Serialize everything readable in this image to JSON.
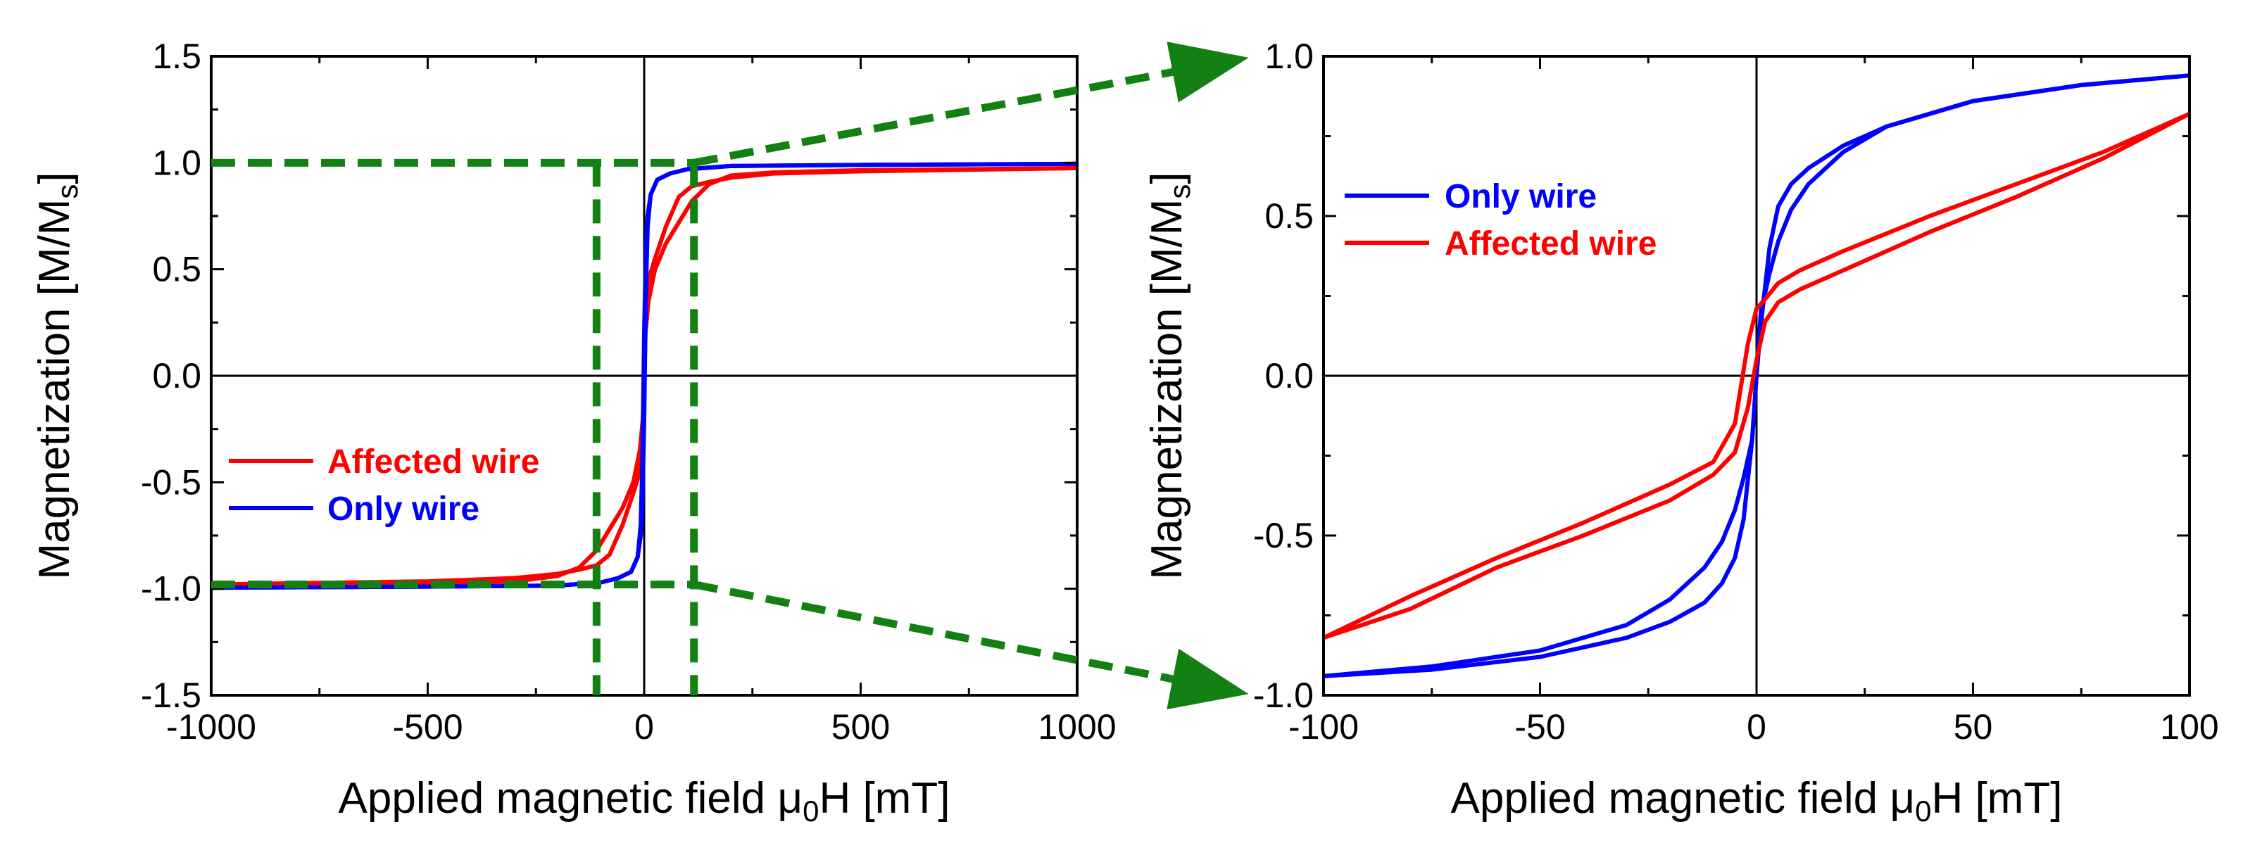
{
  "chart_data": [
    {
      "type": "line",
      "xlabel": "Applied magnetic field μ0H [mT]",
      "ylabel": "Magnetization [M/Ms]",
      "xlim": [
        -1000,
        1000
      ],
      "ylim": [
        -1.5,
        1.5
      ],
      "xticks": [
        -1000,
        -500,
        0,
        500,
        1000
      ],
      "xtick_labels": [
        "-1000",
        "-500",
        "0",
        "500",
        "1000"
      ],
      "yticks": [
        -1.5,
        -1.0,
        -0.5,
        0.0,
        0.5,
        1.0,
        1.5
      ],
      "ytick_labels": [
        "-1.5",
        "-1.0",
        "-0.5",
        "0.0",
        "0.5",
        "1.0",
        "1.5"
      ],
      "zero_lines": true,
      "legend_position": "center-left",
      "legend": [
        "Affected wire",
        "Only wire"
      ],
      "zoom_box": {
        "x": [
          -110,
          115
        ],
        "y": [
          -0.98,
          1.0
        ]
      },
      "series": [
        {
          "name": "Affected wire",
          "color": "#ff0000",
          "branches": [
            {
              "x": [
                -1000,
                -500,
                -300,
                -200,
                -150,
                -110,
                -80,
                -50,
                -25,
                -10,
                -3,
                0,
                3,
                10,
                25,
                50,
                80,
                110,
                150,
                200,
                300,
                500,
                1000
              ],
              "y": [
                -0.98,
                -0.975,
                -0.965,
                -0.94,
                -0.9,
                -0.82,
                -0.72,
                -0.62,
                -0.5,
                -0.35,
                -0.2,
                0.05,
                0.3,
                0.45,
                0.55,
                0.7,
                0.84,
                0.89,
                0.91,
                0.93,
                0.95,
                0.96,
                0.975
              ]
            },
            {
              "x": [
                1000,
                500,
                300,
                200,
                150,
                110,
                80,
                50,
                25,
                10,
                3,
                0,
                -3,
                -10,
                -25,
                -50,
                -80,
                -110,
                -150,
                -200,
                -300,
                -500,
                -1000
              ],
              "y": [
                0.975,
                0.965,
                0.955,
                0.94,
                0.9,
                0.82,
                0.72,
                0.62,
                0.5,
                0.35,
                0.2,
                -0.05,
                -0.3,
                -0.45,
                -0.55,
                -0.7,
                -0.84,
                -0.89,
                -0.91,
                -0.93,
                -0.95,
                -0.965,
                -0.98
              ]
            }
          ]
        },
        {
          "name": "Only wire",
          "color": "#0000ff",
          "branches": [
            {
              "x": [
                -1000,
                -500,
                -200,
                -100,
                -60,
                -30,
                -15,
                -8,
                -4,
                0,
                4,
                8,
                15,
                30,
                60,
                100,
                200,
                500,
                1000
              ],
              "y": [
                -0.995,
                -0.99,
                -0.985,
                -0.97,
                -0.95,
                -0.92,
                -0.85,
                -0.7,
                -0.4,
                0.2,
                0.6,
                0.75,
                0.85,
                0.92,
                0.95,
                0.97,
                0.985,
                0.99,
                0.995
              ]
            },
            {
              "x": [
                1000,
                500,
                200,
                100,
                60,
                30,
                15,
                8,
                4,
                0,
                -4,
                -8,
                -15,
                -30,
                -60,
                -100,
                -200,
                -500,
                -1000
              ],
              "y": [
                0.995,
                0.99,
                0.985,
                0.97,
                0.95,
                0.92,
                0.85,
                0.7,
                0.4,
                -0.2,
                -0.6,
                -0.75,
                -0.85,
                -0.92,
                -0.95,
                -0.97,
                -0.985,
                -0.99,
                -0.995
              ]
            }
          ]
        }
      ]
    },
    {
      "type": "line",
      "xlabel": "Applied magnetic field μ0H [mT]",
      "ylabel": "Magnetization [M/Ms]",
      "xlim": [
        -100,
        100
      ],
      "ylim": [
        -1.0,
        1.0
      ],
      "xticks": [
        -100,
        -50,
        0,
        50,
        100
      ],
      "xtick_labels": [
        "-100",
        "-50",
        "0",
        "50",
        "100"
      ],
      "yticks": [
        -1.0,
        -0.5,
        0.0,
        0.5,
        1.0
      ],
      "ytick_labels": [
        "-1.0",
        "-0.5",
        "0.0",
        "0.5",
        "1.0"
      ],
      "zero_lines": true,
      "legend_position": "top-left",
      "legend": [
        "Only wire",
        "Affected wire"
      ],
      "series": [
        {
          "name": "Only wire",
          "color": "#0000ff",
          "branches": [
            {
              "x": [
                -100,
                -75,
                -50,
                -30,
                -20,
                -12,
                -8,
                -5,
                -3,
                -1,
                0,
                1,
                3,
                5,
                8,
                12,
                20,
                30,
                50,
                75,
                100
              ],
              "y": [
                -0.94,
                -0.92,
                -0.88,
                -0.82,
                -0.77,
                -0.71,
                -0.65,
                -0.57,
                -0.45,
                -0.2,
                0.0,
                0.2,
                0.32,
                0.42,
                0.52,
                0.6,
                0.7,
                0.78,
                0.86,
                0.91,
                0.94
              ]
            },
            {
              "x": [
                100,
                75,
                50,
                30,
                20,
                12,
                8,
                5,
                3,
                1,
                0,
                -1,
                -3,
                -5,
                -8,
                -12,
                -20,
                -30,
                -50,
                -75,
                -100
              ],
              "y": [
                0.94,
                0.91,
                0.86,
                0.78,
                0.72,
                0.65,
                0.6,
                0.53,
                0.4,
                0.16,
                0.0,
                -0.2,
                -0.32,
                -0.42,
                -0.52,
                -0.6,
                -0.7,
                -0.78,
                -0.86,
                -0.91,
                -0.94
              ]
            }
          ]
        },
        {
          "name": "Affected wire",
          "color": "#ff0000",
          "branches": [
            {
              "x": [
                -100,
                -80,
                -60,
                -40,
                -20,
                -10,
                -5,
                -2,
                0,
                2,
                5,
                10,
                20,
                40,
                60,
                80,
                100
              ],
              "y": [
                -0.82,
                -0.73,
                -0.6,
                -0.5,
                -0.39,
                -0.31,
                -0.24,
                -0.1,
                0.05,
                0.17,
                0.23,
                0.27,
                0.33,
                0.45,
                0.56,
                0.68,
                0.82
              ]
            },
            {
              "x": [
                100,
                80,
                60,
                40,
                20,
                10,
                5,
                2,
                0,
                -2,
                -5,
                -10,
                -20,
                -40,
                -60,
                -80,
                -100
              ],
              "y": [
                0.82,
                0.7,
                0.6,
                0.5,
                0.39,
                0.33,
                0.29,
                0.24,
                0.21,
                0.1,
                -0.15,
                -0.27,
                -0.34,
                -0.46,
                -0.57,
                -0.69,
                -0.82
              ]
            }
          ]
        }
      ]
    }
  ]
}
